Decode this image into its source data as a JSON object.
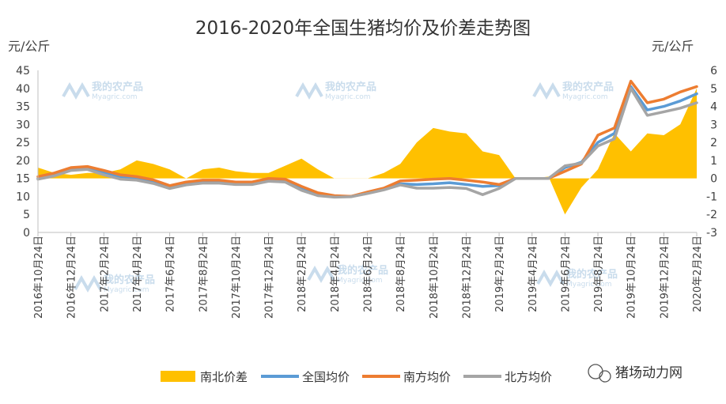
{
  "chart_data": {
    "type": "line",
    "title": "2016-2020年全国生猪均价及价差走势图",
    "ylabel_left": "元/公斤",
    "ylabel_right": "元/公斤",
    "ylim_left": [
      0,
      45
    ],
    "ylim_right": [
      -3,
      6
    ],
    "yticks_left": [
      "0",
      "5",
      "10",
      "15",
      "20",
      "25",
      "30",
      "35",
      "40",
      "45"
    ],
    "yticks_right": [
      "-3",
      "-2",
      "-1",
      "0",
      "1",
      "2",
      "3",
      "4",
      "5",
      "6"
    ],
    "x_labels": [
      "2016年10月24日",
      "2016年12月24日",
      "2017年2月24日",
      "2017年4月24日",
      "2017年6月24日",
      "2017年8月24日",
      "2017年10月24日",
      "2017年12月24日",
      "2018年2月24日",
      "2018年4月24日",
      "2018年6月24日",
      "2018年8月24日",
      "2018年10月24日",
      "2018年12月24日",
      "2019年2月24日",
      "2019年4月24日",
      "2019年6月24日",
      "2019年8月24日",
      "2019年10月24日",
      "2019年12月24日",
      "2020年2月24日"
    ],
    "series": [
      {
        "name": "南北价差",
        "type": "area",
        "axis": "right",
        "color": "#FFC000",
        "points": [
          [
            0,
            0.6
          ],
          [
            0.5,
            0.3
          ],
          [
            1,
            0.2
          ],
          [
            1.5,
            0.3
          ],
          [
            2,
            0.3
          ],
          [
            2.5,
            0.5
          ],
          [
            3,
            1.0
          ],
          [
            3.5,
            0.8
          ],
          [
            4,
            0.5
          ],
          [
            4.5,
            0.0
          ],
          [
            5,
            0.5
          ],
          [
            5.5,
            0.6
          ],
          [
            6,
            0.4
          ],
          [
            6.5,
            0.3
          ],
          [
            7,
            0.3
          ],
          [
            7.5,
            0.7
          ],
          [
            8,
            1.1
          ],
          [
            8.5,
            0.5
          ],
          [
            9,
            0.0
          ],
          [
            9.5,
            0.0
          ],
          [
            10,
            0.0
          ],
          [
            10.5,
            0.3
          ],
          [
            11,
            0.8
          ],
          [
            11.5,
            2.0
          ],
          [
            12,
            2.8
          ],
          [
            12.5,
            2.6
          ],
          [
            13,
            2.5
          ],
          [
            13.5,
            1.5
          ],
          [
            14,
            1.3
          ],
          [
            14.5,
            0.0
          ],
          [
            15,
            0.0
          ],
          [
            15.5,
            0.1
          ],
          [
            16,
            -2.0
          ],
          [
            16.5,
            -0.5
          ],
          [
            17,
            0.5
          ],
          [
            17.5,
            2.5
          ],
          [
            18,
            1.5
          ],
          [
            18.5,
            2.5
          ],
          [
            19,
            2.4
          ],
          [
            19.5,
            3.0
          ],
          [
            20,
            5.0
          ]
        ]
      },
      {
        "name": "全国均价",
        "axis": "left",
        "color": "#5B9BD5",
        "points": [
          [
            0,
            15.0
          ],
          [
            0.5,
            16.0
          ],
          [
            1,
            17.5
          ],
          [
            1.5,
            17.8
          ],
          [
            2,
            16.5
          ],
          [
            2.5,
            15.2
          ],
          [
            3,
            15.0
          ],
          [
            3.5,
            14.0
          ],
          [
            4,
            12.5
          ],
          [
            4.5,
            13.5
          ],
          [
            5,
            14.0
          ],
          [
            5.5,
            14.0
          ],
          [
            6,
            13.5
          ],
          [
            6.5,
            13.5
          ],
          [
            7,
            14.5
          ],
          [
            7.5,
            14.2
          ],
          [
            8,
            12.0
          ],
          [
            8.5,
            10.5
          ],
          [
            9,
            10.0
          ],
          [
            9.5,
            10.0
          ],
          [
            10,
            11.0
          ],
          [
            10.5,
            12.0
          ],
          [
            11,
            13.5
          ],
          [
            11.5,
            13.3
          ],
          [
            12,
            13.5
          ],
          [
            12.5,
            13.8
          ],
          [
            13,
            13.3
          ],
          [
            13.5,
            12.8
          ],
          [
            14,
            13.0
          ],
          [
            14.5,
            15.0
          ],
          [
            15,
            15.0
          ],
          [
            15.5,
            15.0
          ],
          [
            16,
            18.0
          ],
          [
            16.5,
            19.5
          ],
          [
            17,
            25.0
          ],
          [
            17.5,
            27.5
          ],
          [
            18,
            40.5
          ],
          [
            18.5,
            34.0
          ],
          [
            19,
            35.0
          ],
          [
            19.5,
            36.5
          ],
          [
            20,
            38.5
          ]
        ]
      },
      {
        "name": "南方均价",
        "axis": "left",
        "color": "#ED7D31",
        "points": [
          [
            0,
            15.5
          ],
          [
            0.5,
            16.5
          ],
          [
            1,
            18.0
          ],
          [
            1.5,
            18.3
          ],
          [
            2,
            17.2
          ],
          [
            2.5,
            16.0
          ],
          [
            3,
            15.5
          ],
          [
            3.5,
            14.6
          ],
          [
            4,
            13.0
          ],
          [
            4.5,
            14.0
          ],
          [
            5,
            14.5
          ],
          [
            5.5,
            14.5
          ],
          [
            6,
            14.0
          ],
          [
            6.5,
            14.0
          ],
          [
            7,
            15.0
          ],
          [
            7.5,
            14.8
          ],
          [
            8,
            12.8
          ],
          [
            8.5,
            11.0
          ],
          [
            9,
            10.2
          ],
          [
            9.5,
            10.0
          ],
          [
            10,
            11.2
          ],
          [
            10.5,
            12.3
          ],
          [
            11,
            14.3
          ],
          [
            11.5,
            14.5
          ],
          [
            12,
            14.8
          ],
          [
            12.5,
            15.0
          ],
          [
            13,
            14.5
          ],
          [
            13.5,
            14.0
          ],
          [
            14,
            13.3
          ],
          [
            14.5,
            15.0
          ],
          [
            15,
            15.0
          ],
          [
            15.5,
            15.0
          ],
          [
            16,
            17.0
          ],
          [
            16.5,
            19.0
          ],
          [
            17,
            27.0
          ],
          [
            17.5,
            29.0
          ],
          [
            18,
            42.0
          ],
          [
            18.5,
            36.0
          ],
          [
            19,
            37.0
          ],
          [
            19.5,
            39.0
          ],
          [
            20,
            40.5
          ]
        ]
      },
      {
        "name": "北方均价",
        "axis": "left",
        "color": "#A5A5A5",
        "points": [
          [
            0,
            14.8
          ],
          [
            0.5,
            15.7
          ],
          [
            1,
            17.2
          ],
          [
            1.5,
            17.5
          ],
          [
            2,
            16.0
          ],
          [
            2.5,
            14.8
          ],
          [
            3,
            14.5
          ],
          [
            3.5,
            13.6
          ],
          [
            4,
            12.2
          ],
          [
            4.5,
            13.2
          ],
          [
            5,
            13.7
          ],
          [
            5.5,
            13.7
          ],
          [
            6,
            13.3
          ],
          [
            6.5,
            13.3
          ],
          [
            7,
            14.2
          ],
          [
            7.5,
            14.0
          ],
          [
            8,
            11.7
          ],
          [
            8.5,
            10.2
          ],
          [
            9,
            9.8
          ],
          [
            9.5,
            9.9
          ],
          [
            10,
            10.8
          ],
          [
            10.5,
            11.8
          ],
          [
            11,
            13.2
          ],
          [
            11.5,
            12.3
          ],
          [
            12,
            12.3
          ],
          [
            12.5,
            12.5
          ],
          [
            13,
            12.2
          ],
          [
            13.5,
            10.5
          ],
          [
            14,
            12.2
          ],
          [
            14.5,
            15.0
          ],
          [
            15,
            15.0
          ],
          [
            15.5,
            15.0
          ],
          [
            16,
            18.5
          ],
          [
            16.5,
            19.2
          ],
          [
            17,
            24.0
          ],
          [
            17.5,
            26.0
          ],
          [
            18,
            40.0
          ],
          [
            18.5,
            32.5
          ],
          [
            19,
            33.5
          ],
          [
            19.5,
            34.5
          ],
          [
            20,
            36.0
          ]
        ]
      }
    ],
    "legend_position": "bottom",
    "grid": false
  },
  "watermark": {
    "text": "我的农产品",
    "sub": "Myagric.com"
  },
  "brand": {
    "text": "猪场动力网"
  }
}
